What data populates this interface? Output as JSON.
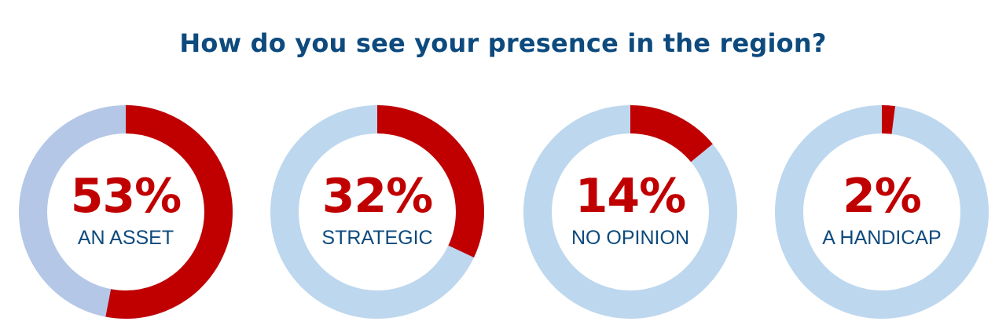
{
  "title": "How do you see your presence in the region?",
  "colors": {
    "title": "#0d4a7e",
    "accent": "#c00000",
    "track_first": "#b4c7e7",
    "track": "#bdd7ee",
    "label": "#0d4a7e"
  },
  "chart_data": {
    "type": "pie",
    "title": "How do you see your presence in the region?",
    "categories": [
      "AN ASSET",
      "STRATEGIC",
      "NO OPINION",
      "A HANDICAP"
    ],
    "values": [
      53,
      32,
      14,
      2
    ],
    "unit": "%",
    "items": [
      {
        "percent_text": "53%",
        "label": "AN ASSET",
        "value": 53
      },
      {
        "percent_text": "32%",
        "label": "STRATEGIC",
        "value": 32
      },
      {
        "percent_text": "14%",
        "label": "NO OPINION",
        "value": 14
      },
      {
        "percent_text": "2%",
        "label": "A HANDICAP",
        "value": 2
      }
    ]
  }
}
